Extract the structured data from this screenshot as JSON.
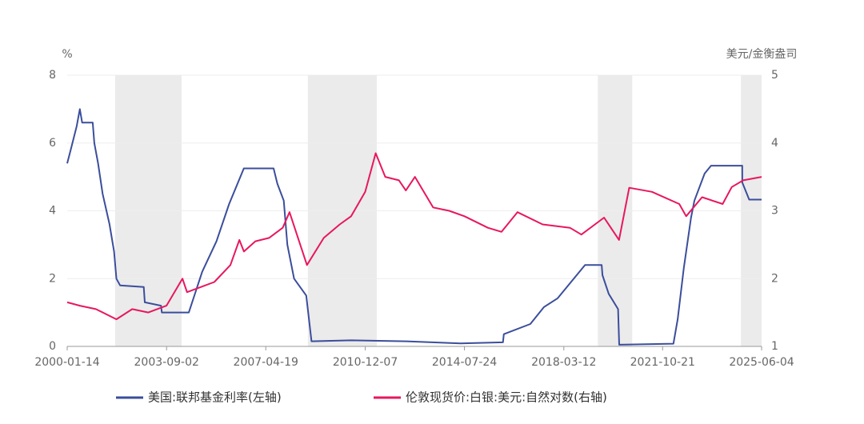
{
  "chart_data": {
    "type": "line",
    "y_unit_label": "%",
    "y2_unit_label": "美元/金衡盎司",
    "xlim": [
      "2000-01-14",
      "2025-06-04"
    ],
    "xticks": [
      "2000-01-14",
      "2003-09-02",
      "2007-04-19",
      "2010-12-07",
      "2014-07-24",
      "2018-03-12",
      "2021-10-21",
      "2025-06-04"
    ],
    "ylim": [
      0,
      8
    ],
    "yticks": [
      0,
      2,
      4,
      6,
      8
    ],
    "y2lim": [
      1,
      5
    ],
    "y2ticks": [
      1,
      2,
      3,
      4,
      5
    ],
    "grid": true,
    "shaded": [
      [
        "2001-10-15",
        "2004-03-20"
      ],
      [
        "2008-11-01",
        "2011-05-10"
      ],
      [
        "2019-06-10",
        "2020-09-10"
      ],
      [
        "2024-09-01",
        "2025-06-04"
      ]
    ],
    "shade_color": "#ebebeb",
    "series": [
      {
        "name": "美国:联邦基金利率(左轴)",
        "color": "#3b4e9c",
        "axis": "y",
        "x": [
          "2000-01-14",
          "2000-03-01",
          "2000-05-20",
          "2000-07-01",
          "2000-08-01",
          "2000-12-20",
          "2001-01-10",
          "2001-03-01",
          "2001-05-01",
          "2001-08-01",
          "2001-10-01",
          "2001-11-01",
          "2001-12-20",
          "2002-11-01",
          "2002-11-15",
          "2003-06-20",
          "2003-07-01",
          "2004-06-25",
          "2004-12-20",
          "2005-06-30",
          "2005-12-15",
          "2006-06-30",
          "2007-08-01",
          "2007-09-20",
          "2007-12-15",
          "2008-02-01",
          "2008-05-01",
          "2008-10-10",
          "2008-12-20",
          "2010-06-01",
          "2012-06-01",
          "2014-06-01",
          "2015-12-20",
          "2016-01-01",
          "2016-12-20",
          "2017-06-20",
          "2017-12-20",
          "2018-06-20",
          "2018-12-20",
          "2019-07-30",
          "2019-08-10",
          "2019-11-01",
          "2020-03-05",
          "2020-03-20",
          "2022-03-15",
          "2022-05-10",
          "2022-07-30",
          "2022-11-05",
          "2022-12-20",
          "2023-05-05",
          "2023-07-30",
          "2024-09-18",
          "2024-09-20",
          "2024-12-20",
          "2025-06-04"
        ],
        "values": [
          5.4,
          5.8,
          6.5,
          7.0,
          6.6,
          6.6,
          6.0,
          5.4,
          4.5,
          3.6,
          2.8,
          2.0,
          1.8,
          1.75,
          1.3,
          1.2,
          1.0,
          1.0,
          2.2,
          3.1,
          4.2,
          5.25,
          5.25,
          4.8,
          4.3,
          3.0,
          2.0,
          1.5,
          0.15,
          0.18,
          0.15,
          0.09,
          0.12,
          0.36,
          0.66,
          1.16,
          1.42,
          1.91,
          2.4,
          2.4,
          2.1,
          1.55,
          1.1,
          0.05,
          0.08,
          0.8,
          2.3,
          3.8,
          4.3,
          5.1,
          5.33,
          5.33,
          4.83,
          4.33,
          4.33
        ]
      },
      {
        "name": "伦敦现货价:白银:美元:自然对数(右轴)",
        "color": "#e8175d",
        "axis": "y2",
        "x": [
          "2000-01-14",
          "2000-07-01",
          "2001-02-01",
          "2001-11-01",
          "2002-06-01",
          "2003-01-01",
          "2003-09-01",
          "2004-04-01",
          "2004-06-01",
          "2005-06-01",
          "2006-01-01",
          "2006-05-01",
          "2006-07-01",
          "2006-12-01",
          "2007-06-01",
          "2007-12-01",
          "2008-03-01",
          "2008-10-20",
          "2009-06-01",
          "2010-01-01",
          "2010-06-01",
          "2010-12-07",
          "2011-04-25",
          "2011-09-01",
          "2012-03-01",
          "2012-06-01",
          "2012-10-01",
          "2013-06-01",
          "2014-01-01",
          "2014-07-24",
          "2015-06-01",
          "2015-12-01",
          "2016-07-01",
          "2017-06-01",
          "2018-06-01",
          "2018-11-01",
          "2019-09-01",
          "2020-03-18",
          "2020-08-01",
          "2021-06-01",
          "2022-06-01",
          "2022-09-01",
          "2023-04-01",
          "2024-01-01",
          "2024-05-01",
          "2024-10-01",
          "2025-06-04"
        ],
        "values": [
          1.65,
          1.6,
          1.55,
          1.4,
          1.55,
          1.5,
          1.6,
          2.0,
          1.8,
          1.95,
          2.2,
          2.57,
          2.4,
          2.55,
          2.6,
          2.75,
          2.98,
          2.2,
          2.6,
          2.8,
          2.92,
          3.28,
          3.85,
          3.5,
          3.45,
          3.3,
          3.5,
          3.05,
          3.0,
          2.92,
          2.75,
          2.69,
          2.98,
          2.8,
          2.75,
          2.65,
          2.9,
          2.57,
          3.34,
          3.28,
          3.1,
          2.92,
          3.2,
          3.1,
          3.35,
          3.45,
          3.5
        ]
      }
    ]
  }
}
